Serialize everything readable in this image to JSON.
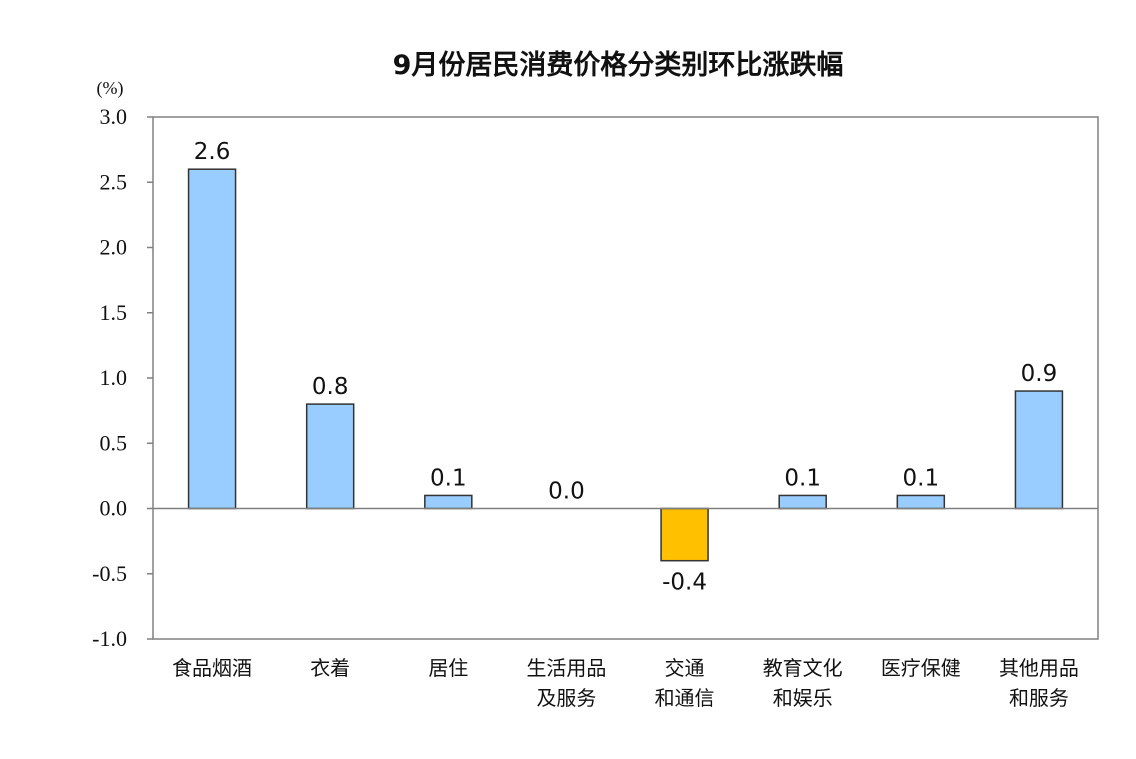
{
  "chart_data": {
    "type": "bar",
    "title": "9月份居民消费价格分类别环比涨跌幅",
    "unit_label": "(%)",
    "categories": [
      [
        "食品烟酒"
      ],
      [
        "衣着"
      ],
      [
        "居住"
      ],
      [
        "生活用品",
        "及服务"
      ],
      [
        "交通",
        "和通信"
      ],
      [
        "教育文化",
        "和娱乐"
      ],
      [
        "医疗保健"
      ],
      [
        "其他用品",
        "和服务"
      ]
    ],
    "values": [
      2.6,
      0.8,
      0.1,
      0.0,
      -0.4,
      0.1,
      0.1,
      0.9
    ],
    "value_labels": [
      "2.6",
      "0.8",
      "0.1",
      "0.0",
      "-0.4",
      "0.1",
      "0.1",
      "0.9"
    ],
    "ylim": [
      -1.0,
      3.0
    ],
    "yticks": [
      "3.0",
      "2.5",
      "2.0",
      "1.5",
      "1.0",
      "0.5",
      "0.0",
      "-0.5",
      "-1.0"
    ],
    "ytick_values": [
      3.0,
      2.5,
      2.0,
      1.5,
      1.0,
      0.5,
      0.0,
      -0.5,
      -1.0
    ],
    "colors": {
      "positive": "#99ccff",
      "negative": "#ffc000",
      "bar_stroke": "#333333",
      "axis": "#808080"
    },
    "grid": false,
    "legend": "none"
  }
}
